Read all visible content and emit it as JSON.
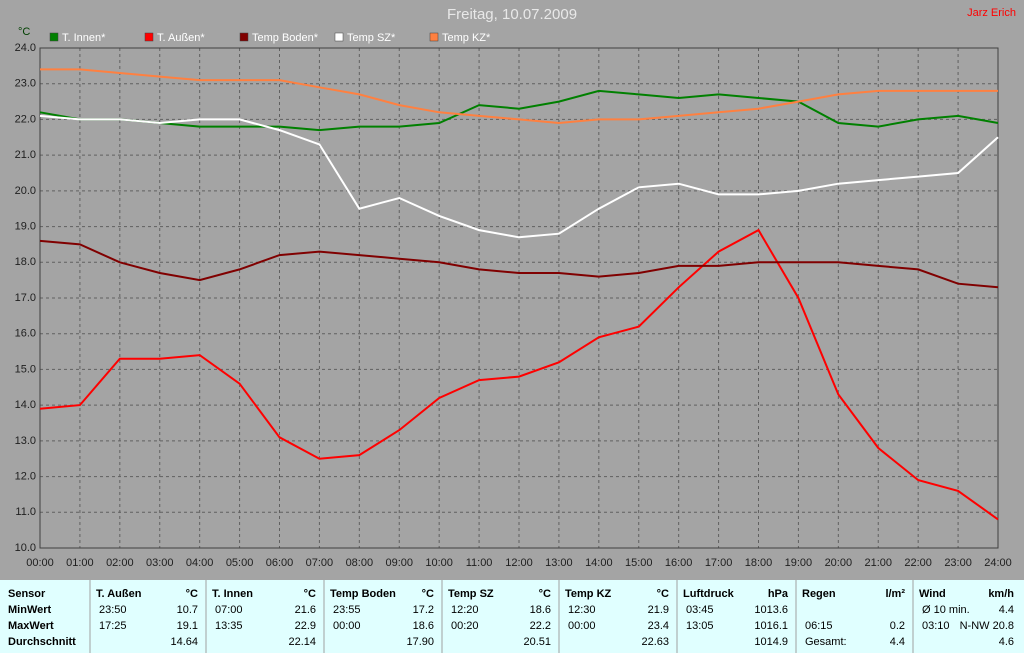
{
  "chart_data": {
    "type": "line",
    "title": "Freitag, 10.07.2009",
    "author": "Jarz Erich",
    "y_label": "°C",
    "x": [
      0,
      1,
      2,
      3,
      4,
      5,
      6,
      7,
      8,
      9,
      10,
      11,
      12,
      13,
      14,
      15,
      16,
      17,
      18,
      19,
      20,
      21,
      22,
      23,
      24
    ],
    "series": [
      {
        "name": "T. Innen*",
        "color": "#008000",
        "values": [
          22.2,
          22.0,
          22.0,
          21.9,
          21.8,
          21.8,
          21.8,
          21.7,
          21.8,
          21.8,
          21.9,
          22.4,
          22.3,
          22.5,
          22.8,
          22.7,
          22.6,
          22.7,
          22.6,
          22.5,
          21.9,
          21.8,
          22.0,
          22.1,
          21.9
        ]
      },
      {
        "name": "T. Außen*",
        "color": "#ff0000",
        "values": [
          13.9,
          14.0,
          15.3,
          15.3,
          15.4,
          14.6,
          13.1,
          12.5,
          12.6,
          13.3,
          14.2,
          14.7,
          14.8,
          15.2,
          15.9,
          16.2,
          17.3,
          18.3,
          18.9,
          17.0,
          14.3,
          12.8,
          11.9,
          11.6,
          10.8
        ]
      },
      {
        "name": "Temp Boden*",
        "color": "#800000",
        "values": [
          18.6,
          18.5,
          18.0,
          17.7,
          17.5,
          17.8,
          18.2,
          18.3,
          18.2,
          18.1,
          18.0,
          17.8,
          17.7,
          17.7,
          17.6,
          17.7,
          17.9,
          17.9,
          18.0,
          18.0,
          18.0,
          17.9,
          17.8,
          17.4,
          17.3
        ]
      },
      {
        "name": "Temp SZ*",
        "color": "#ffffff",
        "values": [
          22.1,
          22.0,
          22.0,
          21.9,
          22.0,
          22.0,
          21.7,
          21.3,
          19.5,
          19.8,
          19.3,
          18.9,
          18.7,
          18.8,
          19.5,
          20.1,
          20.2,
          19.9,
          19.9,
          20.0,
          20.2,
          20.3,
          20.4,
          20.5,
          21.5
        ]
      },
      {
        "name": "Temp KZ*",
        "color": "#ff8040",
        "values": [
          23.4,
          23.4,
          23.3,
          23.2,
          23.1,
          23.1,
          23.1,
          22.9,
          22.7,
          22.4,
          22.2,
          22.1,
          22.0,
          21.9,
          22.0,
          22.0,
          22.1,
          22.2,
          22.3,
          22.5,
          22.7,
          22.8,
          22.8,
          22.8,
          22.8
        ]
      }
    ],
    "xlim": [
      0,
      24
    ],
    "xticks": [
      {
        "value": 0,
        "label": "00:00"
      },
      {
        "value": 1,
        "label": "01:00"
      },
      {
        "value": 2,
        "label": "02:00"
      },
      {
        "value": 3,
        "label": "03:00"
      },
      {
        "value": 4,
        "label": "04:00"
      },
      {
        "value": 5,
        "label": "05:00"
      },
      {
        "value": 6,
        "label": "06:00"
      },
      {
        "value": 7,
        "label": "07:00"
      },
      {
        "value": 8,
        "label": "08:00"
      },
      {
        "value": 9,
        "label": "09:00"
      },
      {
        "value": 10,
        "label": "10:00"
      },
      {
        "value": 11,
        "label": "11:00"
      },
      {
        "value": 12,
        "label": "12:00"
      },
      {
        "value": 13,
        "label": "13:00"
      },
      {
        "value": 14,
        "label": "14:00"
      },
      {
        "value": 15,
        "label": "15:00"
      },
      {
        "value": 16,
        "label": "16:00"
      },
      {
        "value": 17,
        "label": "17:00"
      },
      {
        "value": 18,
        "label": "18:00"
      },
      {
        "value": 19,
        "label": "19:00"
      },
      {
        "value": 20,
        "label": "20:00"
      },
      {
        "value": 21,
        "label": "21:00"
      },
      {
        "value": 22,
        "label": "22:00"
      },
      {
        "value": 23,
        "label": "23:00"
      },
      {
        "value": 24,
        "label": "24:00"
      }
    ],
    "ylim": [
      10,
      24
    ],
    "yticks": [
      {
        "value": 10,
        "label": "10.0"
      },
      {
        "value": 11,
        "label": "11.0"
      },
      {
        "value": 12,
        "label": "12.0"
      },
      {
        "value": 13,
        "label": "13.0"
      },
      {
        "value": 14,
        "label": "14.0"
      },
      {
        "value": 15,
        "label": "15.0"
      },
      {
        "value": 16,
        "label": "16.0"
      },
      {
        "value": 17,
        "label": "17.0"
      },
      {
        "value": 18,
        "label": "18.0"
      },
      {
        "value": 19,
        "label": "19.0"
      },
      {
        "value": 20,
        "label": "20.0"
      },
      {
        "value": 21,
        "label": "21.0"
      },
      {
        "value": 22,
        "label": "22.0"
      },
      {
        "value": 23,
        "label": "23.0"
      },
      {
        "value": 24,
        "label": "24.0"
      }
    ],
    "grid": true
  },
  "table": {
    "row_labels": [
      "Sensor",
      "MinWert",
      "MaxWert",
      "Durchschnitt"
    ],
    "groups": [
      {
        "name": "T. Außen",
        "unit": "°C",
        "rows": [
          [
            "23:50",
            "10.7"
          ],
          [
            "17:25",
            "19.1"
          ],
          [
            null,
            "14.64"
          ]
        ]
      },
      {
        "name": "T. Innen",
        "unit": "°C",
        "rows": [
          [
            "07:00",
            "21.6"
          ],
          [
            "13:35",
            "22.9"
          ],
          [
            null,
            "22.14"
          ]
        ]
      },
      {
        "name": "Temp Boden",
        "unit": "°C",
        "rows": [
          [
            "23:55",
            "17.2"
          ],
          [
            "00:00",
            "18.6"
          ],
          [
            null,
            "17.90"
          ]
        ]
      },
      {
        "name": "Temp SZ",
        "unit": "°C",
        "rows": [
          [
            "12:20",
            "18.6"
          ],
          [
            "00:20",
            "22.2"
          ],
          [
            null,
            "20.51"
          ]
        ]
      },
      {
        "name": "Temp KZ",
        "unit": "°C",
        "rows": [
          [
            "12:30",
            "21.9"
          ],
          [
            "00:00",
            "23.4"
          ],
          [
            null,
            "22.63"
          ]
        ]
      },
      {
        "name": "Luftdruck",
        "unit": "hPa",
        "rows": [
          [
            "03:45",
            "1013.6"
          ],
          [
            "13:05",
            "1016.1"
          ],
          [
            null,
            "1014.9"
          ]
        ]
      },
      {
        "name": "Regen",
        "unit": "l/m²",
        "rows": [
          [
            null,
            null
          ],
          [
            "06:15",
            "0.2"
          ],
          [
            "Gesamt:",
            "4.4"
          ]
        ]
      },
      {
        "name": "Wind",
        "unit": "km/h",
        "rows": [
          [
            "Ø 10 min.",
            "4.4"
          ],
          [
            "03:10",
            "N-NW 20.8"
          ],
          [
            null,
            "4.6"
          ]
        ]
      }
    ]
  }
}
